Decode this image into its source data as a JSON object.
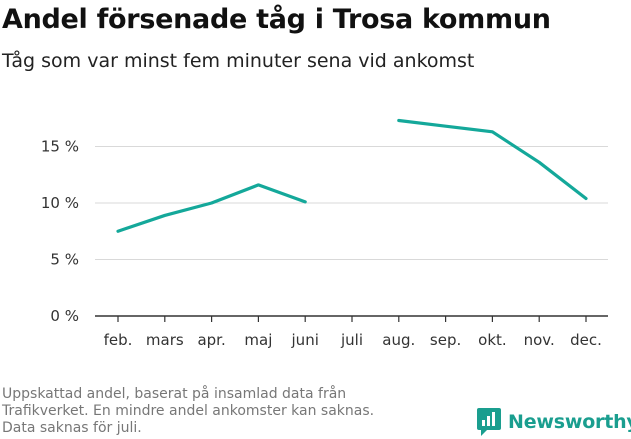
{
  "title": "Andel försenade tåg i Trosa kommun",
  "subtitle": "Tåg som var minst fem minuter sena vid ankomst",
  "footnote": [
    "Uppskattad andel, baserat på insamlad data från",
    "Trafikverket. En mindre andel ankomster kan saknas.",
    "Data saknas för juli."
  ],
  "brand": "Newsworthy",
  "colors": {
    "line": "#14a89a",
    "brand": "#1a9e8f",
    "grid": "#d9d9d9"
  },
  "chart_data": {
    "type": "line",
    "categories": [
      "feb.",
      "mars",
      "apr.",
      "maj",
      "juni",
      "juli",
      "aug.",
      "sep.",
      "okt.",
      "nov.",
      "dec."
    ],
    "series": [
      {
        "values": [
          7.5,
          8.9,
          10.0,
          11.6,
          10.1,
          null,
          17.3,
          16.8,
          16.3,
          13.6,
          10.4
        ]
      }
    ],
    "yticks": [
      0,
      5,
      10,
      15
    ],
    "ytick_labels": [
      "0 %",
      "5 %",
      "10 %",
      "15 %"
    ],
    "ylim": [
      0,
      20
    ],
    "grid": true,
    "legend": "none"
  }
}
